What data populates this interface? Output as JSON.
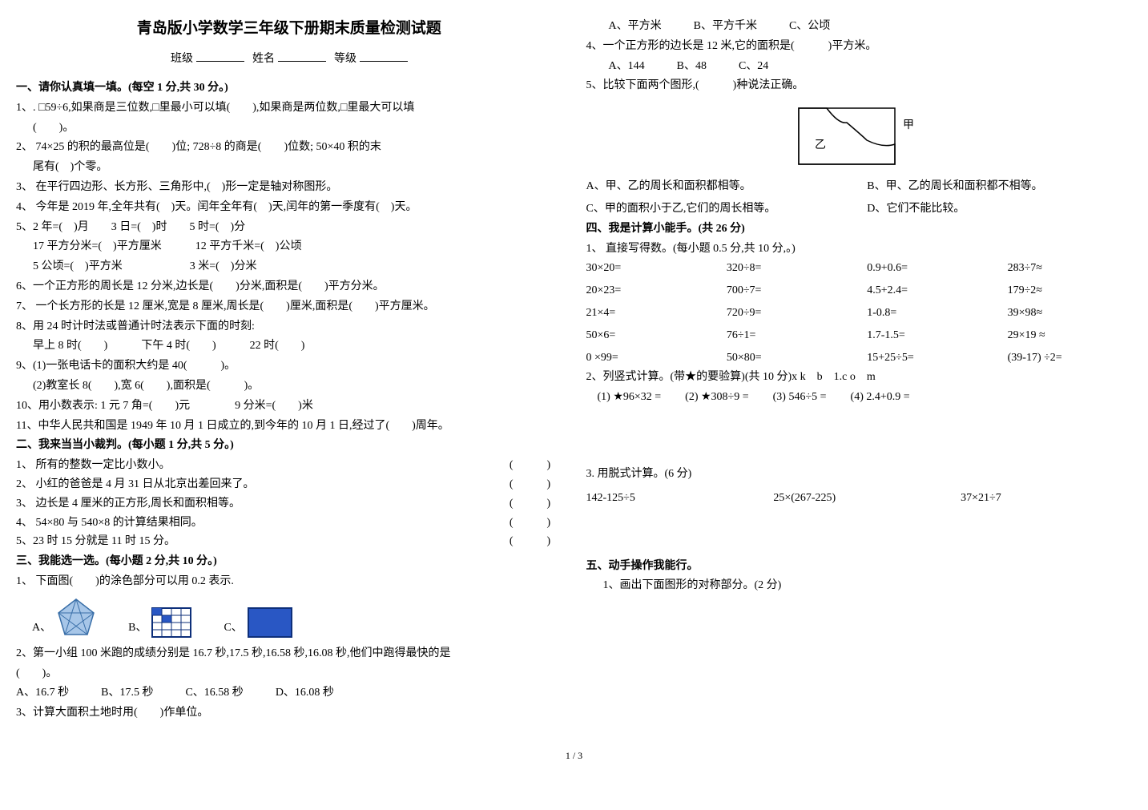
{
  "title": "青岛版小学数学三年级下册期末质量检测试题",
  "header": {
    "class_label": "班级",
    "name_label": "姓名",
    "grade_label": "等级"
  },
  "s1": {
    "h": "一、请你认真填一填。(每空 1 分,共 30 分。)",
    "q1": "1、. □59÷6,如果商是三位数,□里最小可以填(　　),如果商是两位数,□里最大可以填",
    "q1b": "(　　)。",
    "q2": "2、 74×25 的积的最高位是(　　)位; 728÷8 的商是(　　)位数; 50×40 积的末",
    "q2b": "尾有(　)个零。",
    "q3": "3、 在平行四边形、长方形、三角形中,(　)形一定是轴对称图形。",
    "q4": "4、 今年是 2019 年,全年共有(　)天。闰年全年有(　)天,闰年的第一季度有(　)天。",
    "q5": "5、2 年=(　)月　　3 日=(　)时　　5 时=(　)分",
    "q5b": "17 平方分米=(　)平方厘米　　　12 平方千米=(　)公顷",
    "q5c": "5 公顷=(　)平方米　　　　　　3 米=(　)分米",
    "q6": "6、一个正方形的周长是 12 分米,边长是(　　)分米,面积是(　　)平方分米。",
    "q7": "7、 一个长方形的长是 12 厘米,宽是 8 厘米,周长是(　　)厘米,面积是(　　)平方厘米。",
    "q8": "8、用 24 时计时法或普通计时法表示下面的时刻:",
    "q8b": "早上 8 时(　　)　　　下午 4 时(　　)　　　22 时(　　)",
    "q9": "9、(1)一张电话卡的面积大约是 40(　　　)。",
    "q9b": "(2)教室长 8(　　),宽 6(　　),面积是(　　　)。",
    "q10": "10、用小数表示: 1 元 7 角=(　　)元　　　　9 分米=(　　)米",
    "q11": "11、中华人民共和国是 1949 年 10 月 1 日成立的,到今年的 10 月 1 日,经过了(　　)周年。"
  },
  "s2": {
    "h": "二、我来当当小裁判。(每小题 1 分,共 5 分。)",
    "q1": "1、 所有的整数一定比小数小。",
    "q2": "2、 小红的爸爸是 4 月 31 日从北京出差回来了。",
    "q3": "3、 边长是 4 厘米的正方形,周长和面积相等。",
    "q4": "4、 54×80  与  540×8  的计算结果相同。",
    "q5": "5、23 时 15 分就是 11 时 15 分。",
    "paren": "(　　　)"
  },
  "s3": {
    "h": "三、我能选一选。(每小题 2 分,共 10 分。)",
    "q1": "1、 下面图(　　)的涂色部分可以用 0.2 表示.",
    "labA": "A、",
    "labB": "B、",
    "labC": "C、",
    "q2": "2、第一小组 100 米跑的成绩分别是 16.7 秒,17.5 秒,16.58 秒,16.08 秒,他们中跑得最快的是",
    "q2b": "(　　)。",
    "q2a": "A、16.7 秒",
    "q2bopt": "B、17.5 秒",
    "q2c": "C、16.58 秒",
    "q2d": "D、16.08 秒",
    "q3": "3、计算大面积土地时用(　　)作单位。",
    "q3a": "A、平方米",
    "q3b": "B、平方千米",
    "q3c": "C、公顷",
    "q4": "4、一个正方形的边长是 12 米,它的面积是(　　　)平方米。",
    "q4a": "A、144",
    "q4b": "B、48",
    "q4c": "C、24",
    "q5": "5、比较下面两个图形,(　　　)种说法正确。",
    "q5jia": "甲",
    "q5yi": "乙",
    "q5a": "A、甲、乙的周长和面积都相等。",
    "q5b": "B、甲、乙的周长和面积都不相等。",
    "q5c": "C、甲的面积小于乙,它们的周长相等。",
    "q5d": "D、它们不能比较。"
  },
  "s4": {
    "h": "四、我是计算小能手。(共 26 分)",
    "p1": "1、 直接写得数。(每小题 0.5 分,共 10 分,。)",
    "g": [
      "30×20=",
      "320÷8=",
      "0.9+0.6=",
      "283÷7≈",
      "20×23=",
      "700÷7=",
      "4.5+2.4=",
      "179÷2≈",
      "21×4=",
      "720÷9=",
      "1-0.8=",
      "39×98≈",
      "50×6=",
      "76÷1=",
      "1.7-1.5=",
      "29×19 ≈",
      "0 ×99=",
      "50×80=",
      "15+25÷5=",
      "(39-17) ÷2="
    ],
    "p2": "2、列竖式计算。(带★的要验算)(共 10 分)x k　b　1.c o　m",
    "p2a": "(1) ★96×32 =",
    "p2b": "(2) ★308÷9 =",
    "p2c": "(3) 546÷5 =",
    "p2d": "(4) 2.4+0.9 =",
    "p3": "3. 用脱式计算。(6 分)",
    "p3a": "142-125÷5",
    "p3b": "25×(267-225)",
    "p3c": "37×21÷7"
  },
  "s5": {
    "h": "五、动手操作我能行。",
    "q1": "1、画出下面图形的对称部分。(2 分)"
  },
  "footer": "1 / 3",
  "colors": {
    "pent_fill": "#a7c6e8",
    "pent_stroke": "#3a6fa8",
    "grid_fill": "#2957c4",
    "grid_stroke": "#0d2f7a",
    "blue_fill": "#2957c4",
    "blue_stroke": "#0d2f7a"
  }
}
